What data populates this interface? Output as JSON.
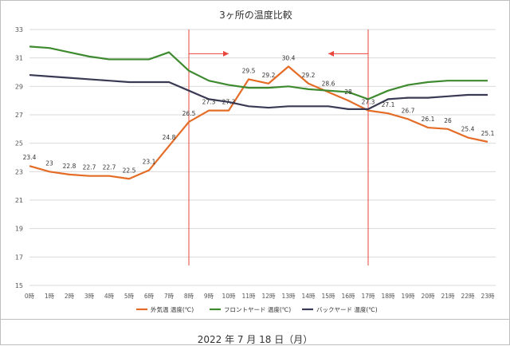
{
  "chart_data": {
    "type": "line",
    "title": "3ヶ所の温度比較",
    "x": [
      "0時",
      "1時",
      "2時",
      "3時",
      "4時",
      "5時",
      "6時",
      "7時",
      "8時",
      "9時",
      "10時",
      "11時",
      "12時",
      "13時",
      "14時",
      "15時",
      "16時",
      "17時",
      "18時",
      "19時",
      "20時",
      "21時",
      "22時",
      "23時"
    ],
    "ylim": [
      15,
      33
    ],
    "yticks": [
      15,
      17,
      19,
      21,
      23,
      25,
      27,
      29,
      31,
      33
    ],
    "grid": true,
    "legend_position": "bottom",
    "series": [
      {
        "name": "外気温 温度(℃)",
        "color": "#e46c26",
        "values": [
          23.4,
          23,
          22.8,
          22.7,
          22.7,
          22.5,
          23.1,
          24.8,
          26.5,
          27.3,
          27.3,
          29.5,
          29.2,
          30.4,
          29.2,
          28.6,
          28,
          27.3,
          27.1,
          26.7,
          26.1,
          26,
          25.4,
          25.1
        ],
        "labels": [
          "23.4",
          "23",
          "22.8",
          "22.7",
          "22.7",
          "22.5",
          "23.1",
          "24.8",
          "26.5",
          "27.3",
          "27.3",
          "29.5",
          "29.2",
          "30.4",
          "29.2",
          "28.6",
          "28",
          "27.3",
          "27.1",
          "26.7",
          "26.1",
          "26",
          "25.4",
          "25.1"
        ]
      },
      {
        "name": "フロントヤード 温度(℃)",
        "color": "#3e8a2e",
        "values": [
          31.8,
          31.7,
          31.4,
          31.1,
          30.9,
          30.9,
          30.9,
          31.4,
          30.1,
          29.4,
          29.1,
          28.9,
          28.9,
          29.0,
          28.8,
          28.7,
          28.6,
          28.1,
          28.7,
          29.1,
          29.3,
          29.4,
          29.4,
          29.4
        ]
      },
      {
        "name": "バックヤード 温度(℃)",
        "color": "#3a3a55",
        "values": [
          29.8,
          29.7,
          29.6,
          29.5,
          29.4,
          29.3,
          29.3,
          29.3,
          28.7,
          28.1,
          27.9,
          27.6,
          27.5,
          27.6,
          27.6,
          27.6,
          27.4,
          27.4,
          28.1,
          28.2,
          28.2,
          28.3,
          28.4,
          28.4
        ]
      }
    ],
    "annotations": {
      "vertical_markers_at": [
        "8時",
        "17時"
      ],
      "marker_color": "#e8453c",
      "arrows": [
        {
          "from": "8時",
          "direction": "right"
        },
        {
          "from": "17時",
          "direction": "left"
        }
      ]
    }
  },
  "footer": {
    "date": "2022 年 7 月 18 日（月）"
  }
}
